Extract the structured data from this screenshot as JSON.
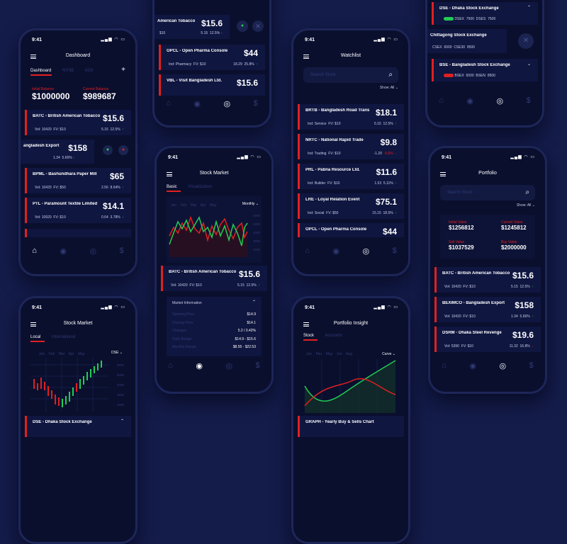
{
  "status_time": "9:41",
  "colors": {
    "background": "#141c4a",
    "screen": "#0a0f2e",
    "card": "#0f1640",
    "accent_red": "#e02020",
    "accent_green": "#22cc55"
  },
  "icons": [
    "menu-icon",
    "plus-icon",
    "search-icon",
    "home-icon",
    "compass-icon",
    "eye-icon",
    "money-bag-icon",
    "close-icon",
    "chevron-down-icon",
    "arrow-up-icon",
    "arrow-down-icon",
    "signal-icon",
    "wifi-icon",
    "battery-icon"
  ],
  "dashboard": {
    "title": "Dashboard",
    "tab_active": "Dashboard",
    "tab2": "NYSE",
    "tab3": "ASX",
    "plus": "+",
    "left_label": "Initial Balance",
    "left_value": "$1000000",
    "right_label": "Current Balance",
    "right_value": "$989687",
    "cards": [
      {
        "name": "BATC - British American Tobacco",
        "price": "$15.6",
        "vol": "Vol: 10420",
        "fv": "FV: $10",
        "c1": "5.15",
        "c2": "12.5%",
        "dir": "↑"
      },
      {
        "name": "angladesh Export",
        "price": "$158",
        "c1": "1.34",
        "c2": "5.66%",
        "dir": "↑"
      },
      {
        "name": "BPML - Bashundhara Paper Mill",
        "price": "$65",
        "vol": "Vol: 10420",
        "fv": "FV: $50",
        "c1": "2.56",
        "c2": "8.64%",
        "dir": "↑"
      },
      {
        "name": "PTL - Paramount Textile Limited",
        "price": "$14.1",
        "vol": "Vol: 10920",
        "fv": "FV: $10",
        "c1": "0.64",
        "c2": "3.78%",
        "dir": "↑"
      }
    ]
  },
  "top_center": {
    "card1": {
      "name": "American Tobacco",
      "price": "$15.6",
      "fv": "$10",
      "c1": "5.15",
      "c2": "12.5%",
      "dir": "↑"
    },
    "card2": {
      "name": "OPCL - Open Pharma Console",
      "price": "$44",
      "vol": "Ind: Pharmacy",
      "fv": "FV: $10",
      "c1": "18.29",
      "c2": "25.8%",
      "dir": "↑"
    },
    "card3": {
      "name": "VBL - Visit Bangladesh Ltd.",
      "price": "$15.6"
    }
  },
  "watchlist": {
    "title": "Watchlist",
    "search_placeholder": "Search Stock",
    "filter_label": "Show: All",
    "cards": [
      {
        "name": "BRTB - Bangladesh Road Trans",
        "price": "$18.1",
        "vol": "Ind: Service",
        "fv": "FV: $10",
        "c1": "5.15",
        "c2": "12.5%",
        "dir": "↑"
      },
      {
        "name": "NRTC - National Rapid Trade",
        "price": "$9.8",
        "vol": "Ind: Trading",
        "fv": "FV: $10",
        "c1": "-1.20",
        "c2": "-5.6%",
        "dir": "↓"
      },
      {
        "name": "PRL - Pabna Resource Ltd.",
        "price": "$11.6",
        "vol": "Ind: Builder",
        "fv": "FV: $10",
        "c1": "1.53",
        "c2": "5.11%",
        "dir": "↑"
      },
      {
        "name": "LRE - Loyal Relation Event",
        "price": "$75.1",
        "vol": "Ind: Social",
        "fv": "FV: $50",
        "c1": "15.15",
        "c2": "18.5%",
        "dir": "↑"
      },
      {
        "name": "OPCL - Open Pharma Console",
        "price": "$44"
      }
    ]
  },
  "top_right": {
    "card1": {
      "name": "DSE - Dhaka Stock Exchange",
      "badge": "Open",
      "v1": "DSEX",
      "n1": "7500",
      "v2": "DSES",
      "n2": "7500"
    },
    "card2": {
      "name": "Chittagong Stock Exchange",
      "v1": "CSEX",
      "n1": "6000",
      "v2": "CSE30",
      "n2": "8500"
    },
    "card3": {
      "name": "BSE - Bangladesh Stock Exchange",
      "badge": "Closed",
      "v1": "BSEX",
      "n1": "6000",
      "v2": "BSEN",
      "n2": "8500"
    }
  },
  "stock_market_mid": {
    "title": "Stock Market",
    "tab_active": "Basic",
    "tab2": "Visualization",
    "months": [
      "Jan",
      "Feb",
      "Mar",
      "Apr",
      "May"
    ],
    "period": "Monthly",
    "y_ticks": [
      "6000",
      "5000",
      "4000",
      "3000",
      "2000"
    ],
    "card": {
      "name": "BATC - British American Tobacco",
      "price": "$15.6",
      "vol": "Vol: 10420",
      "fv": "FV: $10",
      "c1": "5.15",
      "c2": "12.5%",
      "dir": "↑"
    },
    "info_title": "Market Information",
    "info": [
      {
        "k": "Opening Price",
        "v": "$14.9"
      },
      {
        "k": "Closing Price",
        "v": "$14.1"
      },
      {
        "k": "Changes",
        "v": "5.2 / 0.42%"
      },
      {
        "k": "Daily Range",
        "v": "$14.9 - $15.6"
      },
      {
        "k": "Monthly Range",
        "v": "$8.55 - $22.53"
      }
    ]
  },
  "stock_market_bl": {
    "title": "Stock Market",
    "tab_active": "Local",
    "tab2": "International",
    "months": [
      "Jan",
      "Feb",
      "Mar",
      "Apr",
      "May"
    ],
    "exchange": "DSE",
    "y_ticks": [
      "6000",
      "5000",
      "4000",
      "3000",
      "2000"
    ],
    "card": {
      "name": "DSE - Dhaka Stock Exchange"
    }
  },
  "portfolio_insight": {
    "title": "Portfolio Insight",
    "tab_active": "Stock",
    "tab2": "Accounts",
    "months": [
      "Jan",
      "Mar",
      "May",
      "Jun",
      "Aug"
    ],
    "period": "Curve",
    "card": {
      "name": "GRAPH - Yearly Buy & Sells Chart"
    }
  },
  "portfolio": {
    "title": "Portfolio",
    "search_placeholder": "Search Stock",
    "filter_label": "Show: All",
    "stats": [
      {
        "label": "Initial Value",
        "value": "$1256812"
      },
      {
        "label": "Current Value",
        "value": "$1245812"
      },
      {
        "label": "Sell Value",
        "value": "$1037529"
      },
      {
        "label": "Buy Value",
        "value": "$2000000"
      }
    ],
    "cards": [
      {
        "name": "BATC - British American Tobacco",
        "price": "$15.6",
        "vol": "Vol: 10420",
        "fv": "FV: $10",
        "c1": "5.15",
        "c2": "12.5%",
        "dir": "↑"
      },
      {
        "name": "BEXIMCO - Bangladesh Export",
        "price": "$158",
        "vol": "Vol: 10420",
        "fv": "FV: $10",
        "c1": "1.34",
        "c2": "5.66%",
        "dir": "↑"
      },
      {
        "name": "DSRM - Dhaka Steel Revenge",
        "price": "$19.6",
        "vol": "Vol: 5390",
        "fv": "FV: $10",
        "c1": "11.32",
        "c2": "16.8%",
        "dir": "↓"
      }
    ]
  }
}
